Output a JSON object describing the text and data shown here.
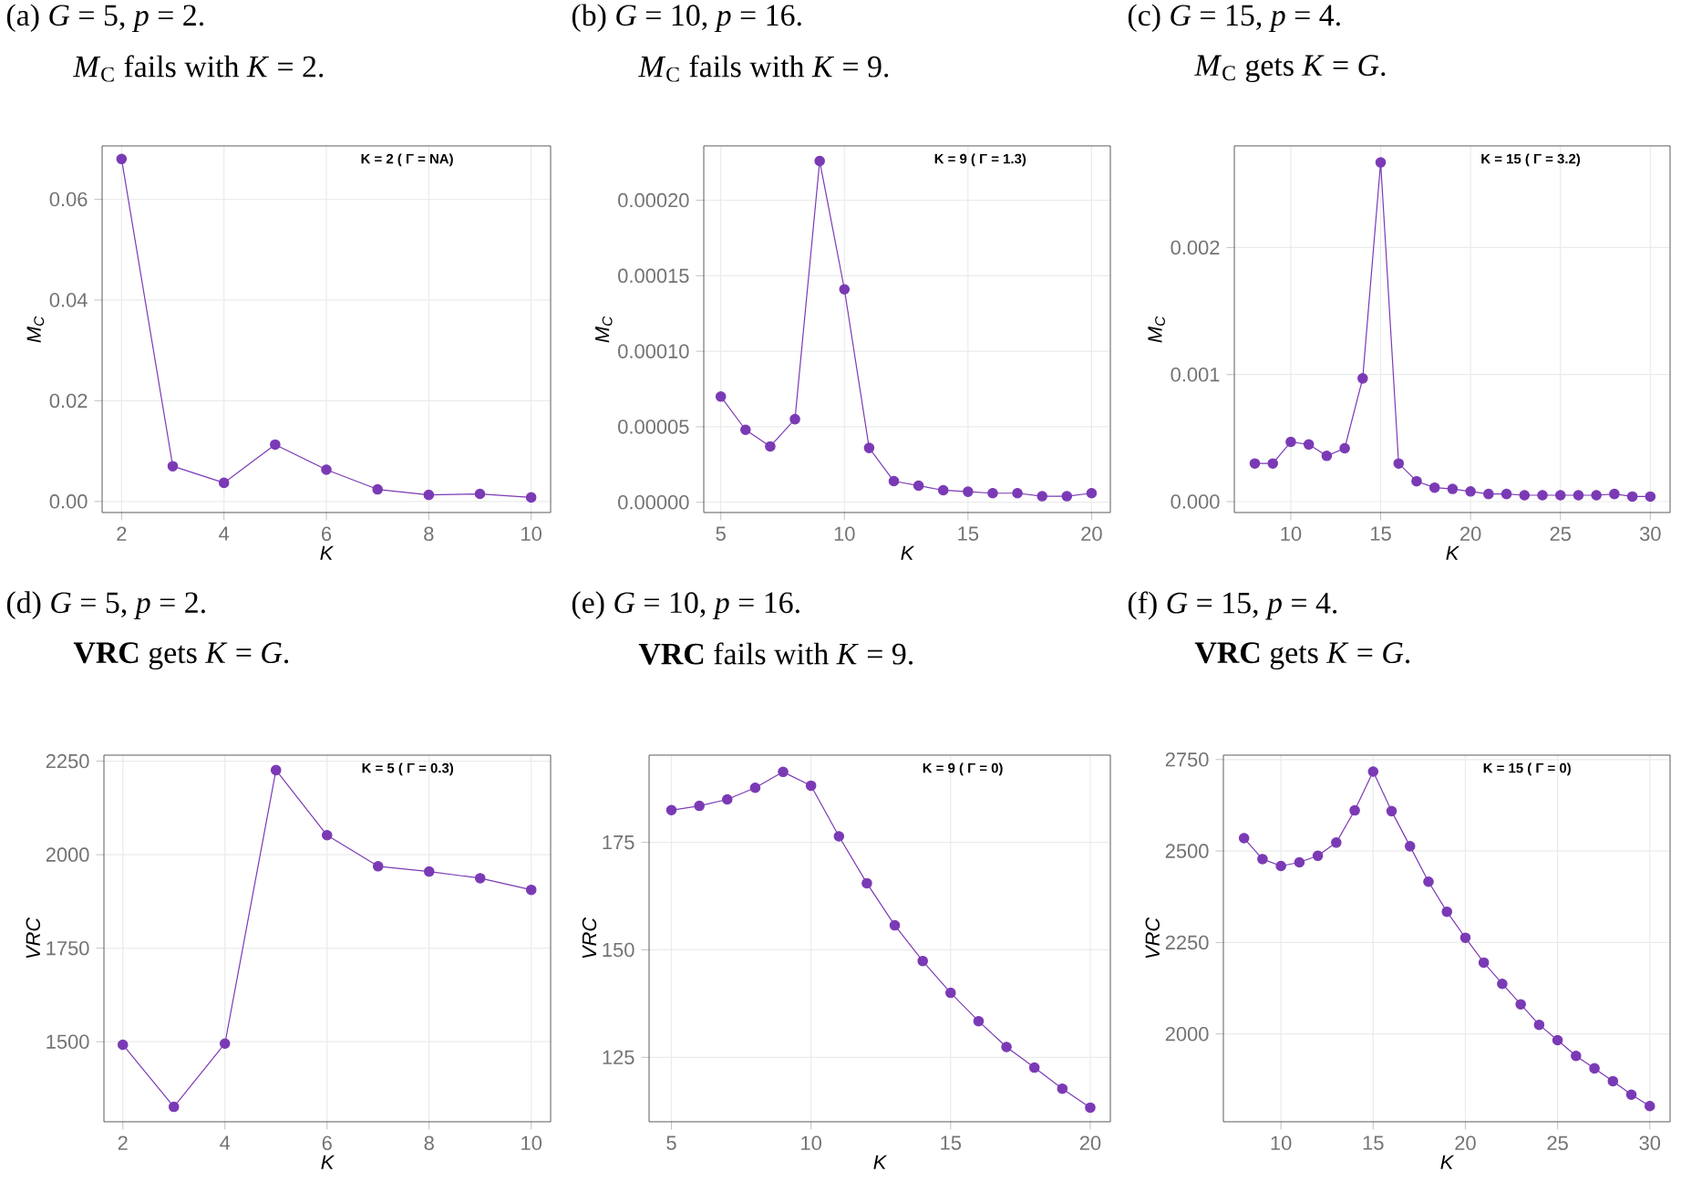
{
  "chart_data": [
    {
      "type": "line",
      "title": "(a) *G* = 5, *p* = 2.",
      "subtitle": "*M*$_{C}$ fails with *K* = 2.",
      "xlabel": "K",
      "ylabel": "M$_{C}$",
      "annotations": [
        "K = 2  ( Γ = NA)"
      ],
      "color": "#7b3ab5",
      "marker": "circle",
      "grid": true,
      "x": [
        2,
        3,
        4,
        5,
        6,
        7,
        8,
        9,
        10
      ],
      "values": [
        0.068,
        0.007,
        0.0037,
        0.0113,
        0.0063,
        0.0024,
        0.0013,
        0.0015,
        0.0008
      ],
      "xlim": [
        1.62,
        10.38
      ],
      "ylim": [
        -0.0022,
        0.0706
      ],
      "xticks": [
        2,
        4,
        6,
        8,
        10
      ],
      "yticks": [
        {
          "value": 0,
          "label": "0.00"
        },
        {
          "value": 0.02,
          "label": "0.02"
        },
        {
          "value": 0.04,
          "label": "0.04"
        },
        {
          "value": 0.06,
          "label": "0.06"
        }
      ]
    },
    {
      "type": "line",
      "title": "(b) *G* = 10, *p* = 16.",
      "subtitle": "*M*$_{C}$ fails with *K* = 9.",
      "xlabel": "K",
      "ylabel": "M$_{C}$",
      "annotations": [
        "K = 9  ( Γ = 1.3)"
      ],
      "color": "#7b3ab5",
      "marker": "circle",
      "grid": true,
      "x": [
        5,
        6,
        7,
        8,
        9,
        10,
        11,
        12,
        13,
        14,
        15,
        16,
        17,
        18,
        19,
        20
      ],
      "values": [
        7e-05,
        4.8e-05,
        3.7e-05,
        5.5e-05,
        0.000226,
        0.000141,
        3.6e-05,
        1.4e-05,
        1.1e-05,
        8e-06,
        7e-06,
        6e-06,
        6e-06,
        4e-06,
        4e-06,
        6e-06
      ],
      "xlim": [
        4.31,
        20.76
      ],
      "ylim": [
        -6.8e-06,
        0.000236
      ],
      "xticks": [
        5,
        10,
        15,
        20
      ],
      "yticks": [
        {
          "value": 0,
          "label": "0.00000"
        },
        {
          "value": 5e-05,
          "label": "0.00005"
        },
        {
          "value": 0.0001,
          "label": "0.00010"
        },
        {
          "value": 0.00015,
          "label": "0.00015"
        },
        {
          "value": 0.0002,
          "label": "0.00020"
        }
      ]
    },
    {
      "type": "line",
      "title": "(c) *G* = 15, *p* = 4.",
      "subtitle": "*M*$_{C}$ gets *K* = *G*.",
      "xlabel": "K",
      "ylabel": "M$_{C}$",
      "annotations": [
        "K = 15  ( Γ = 3.2)"
      ],
      "color": "#7b3ab5",
      "marker": "circle",
      "grid": true,
      "x": [
        8,
        9,
        10,
        11,
        12,
        13,
        14,
        15,
        16,
        17,
        18,
        19,
        20,
        21,
        22,
        23,
        24,
        25,
        26,
        27,
        28,
        29,
        30
      ],
      "values": [
        0.0003,
        0.0003,
        0.00047,
        0.00045,
        0.00036,
        0.00042,
        0.00097,
        0.00267,
        0.0003,
        0.00016,
        0.00011,
        0.0001,
        8e-05,
        6e-05,
        6e-05,
        5e-05,
        5e-05,
        5e-05,
        5e-05,
        5e-05,
        6e-05,
        4e-05,
        4e-05
      ],
      "xlim": [
        6.86,
        31.1
      ],
      "ylim": [
        -8.6e-05,
        0.0028
      ],
      "xticks": [
        10,
        15,
        20,
        25,
        30
      ],
      "yticks": [
        {
          "value": 0,
          "label": "0.000"
        },
        {
          "value": 0.001,
          "label": "0.001"
        },
        {
          "value": 0.002,
          "label": "0.002"
        }
      ]
    },
    {
      "type": "line",
      "title": "(d) *G* = 5, *p* = 2.",
      "subtitle": "**VRC** gets *K* = *G*.",
      "xlabel": "K",
      "ylabel": "VRC",
      "annotations": [
        "K = 5  ( Γ = 0.3)"
      ],
      "color": "#7b3ab5",
      "marker": "circle",
      "grid": true,
      "x": [
        2,
        3,
        4,
        5,
        6,
        7,
        8,
        9,
        10
      ],
      "values": [
        1492,
        1326,
        1495,
        2226,
        2052,
        1969,
        1955,
        1937,
        1906
      ],
      "xlim": [
        1.63,
        10.38
      ],
      "ylim": [
        1286,
        2266
      ],
      "xticks": [
        2,
        4,
        6,
        8,
        10
      ],
      "yticks": [
        1500,
        1750,
        2000,
        2250
      ]
    },
    {
      "type": "line",
      "title": "(e) *G* = 10, *p* = 16.",
      "subtitle": "**VRC** fails with *K* = 9.",
      "xlabel": "K",
      "ylabel": "VRC",
      "annotations": [
        "K = 9  ( Γ = 0)"
      ],
      "color": "#7b3ab5",
      "marker": "circle",
      "grid": true,
      "x": [
        5,
        6,
        7,
        8,
        9,
        10,
        11,
        12,
        13,
        14,
        15,
        16,
        17,
        18,
        19,
        20
      ],
      "values": [
        182.5,
        183.5,
        185.0,
        187.7,
        191.4,
        188.2,
        176.4,
        165.5,
        155.7,
        147.4,
        140.0,
        133.4,
        127.4,
        122.6,
        117.7,
        113.3
      ],
      "xlim": [
        4.2,
        20.72
      ],
      "ylim": [
        110,
        195.3
      ],
      "xticks": [
        5,
        10,
        15,
        20
      ],
      "yticks": [
        125,
        150,
        175
      ]
    },
    {
      "type": "line",
      "title": "(f) *G* = 15, *p* = 4.",
      "subtitle": "**VRC** gets *K* = *G*.",
      "xlabel": "K",
      "ylabel": "VRC",
      "annotations": [
        "K = 15  ( Γ = 0)"
      ],
      "color": "#7b3ab5",
      "marker": "circle",
      "grid": true,
      "x": [
        8,
        9,
        10,
        11,
        12,
        13,
        14,
        15,
        16,
        17,
        18,
        19,
        20,
        21,
        22,
        23,
        24,
        25,
        26,
        27,
        28,
        29,
        30
      ],
      "values": [
        2535,
        2478,
        2459,
        2469,
        2487,
        2523,
        2611,
        2717,
        2609,
        2513,
        2416,
        2334,
        2263,
        2195,
        2137,
        2081,
        2025,
        1983,
        1940,
        1906,
        1871,
        1834,
        1803
      ],
      "xlim": [
        6.88,
        31.1
      ],
      "ylim": [
        1760,
        2762
      ],
      "xticks": [
        10,
        15,
        20,
        25,
        30
      ],
      "yticks": [
        2000,
        2250,
        2500,
        2750
      ]
    }
  ]
}
